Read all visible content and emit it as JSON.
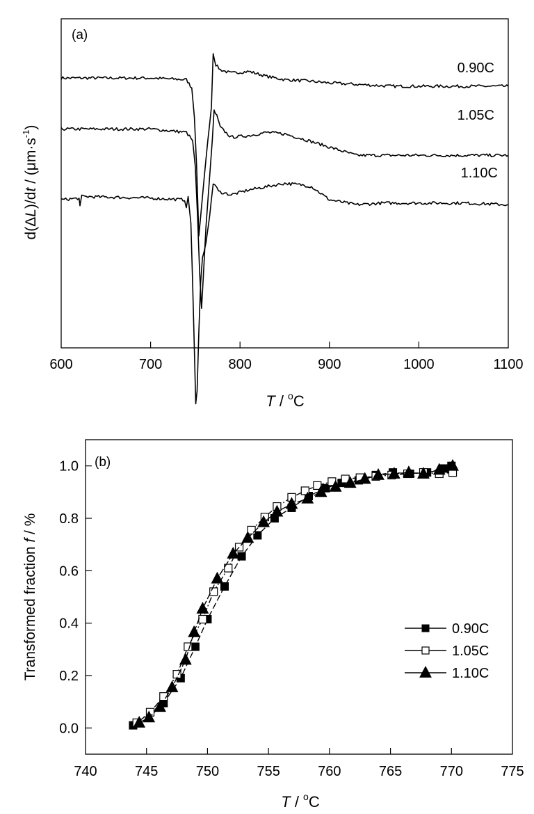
{
  "chart_data": [
    {
      "type": "line",
      "panel_label": "(a)",
      "xlabel_italic": "T",
      "xlabel_rest": " / ",
      "xlabel_sup": "o",
      "xlabel_unit": "C",
      "ylabel_prefix": "d(",
      "ylabel_delta": "Δ",
      "ylabel_L": "L",
      "ylabel_mid": ")/d",
      "ylabel_t": "t",
      "ylabel_rest": " / (μm·s",
      "ylabel_sup": "-1",
      "ylabel_close": ")",
      "xlim": [
        600,
        1100
      ],
      "x_ticks": [
        "600",
        "700",
        "800",
        "900",
        "1000",
        "1100"
      ],
      "y_ticks_shown": false,
      "ylim": [
        0,
        100
      ],
      "series": [
        {
          "name": "0.90C",
          "baseline": 81.5,
          "points": [
            [
              600,
              82
            ],
            [
              700,
              82
            ],
            [
              740,
              81.5
            ],
            [
              746,
              79
            ],
            [
              749,
              70
            ],
            [
              751.5,
              55
            ],
            [
              754,
              34
            ],
            [
              756,
              40
            ],
            [
              760,
              52
            ],
            [
              764,
              63
            ],
            [
              768,
              73
            ],
            [
              770,
              89.5
            ],
            [
              773,
              86
            ],
            [
              778,
              84.5
            ],
            [
              790,
              83.5
            ],
            [
              810,
              84
            ],
            [
              830,
              82.5
            ],
            [
              850,
              81.5
            ],
            [
              880,
              81
            ],
            [
              900,
              80.5
            ],
            [
              935,
              80
            ],
            [
              970,
              79.5
            ],
            [
              1000,
              79.5
            ],
            [
              1050,
              79.5
            ],
            [
              1100,
              79.5
            ]
          ]
        },
        {
          "name": "1.05C",
          "baseline": 66.5,
          "points": [
            [
              600,
              66.5
            ],
            [
              700,
              66.5
            ],
            [
              740,
              65.5
            ],
            [
              747,
              63
            ],
            [
              750,
              55
            ],
            [
              752.5,
              40
            ],
            [
              755,
              22
            ],
            [
              757,
              12
            ],
            [
              759,
              22
            ],
            [
              762,
              37
            ],
            [
              766,
              52
            ],
            [
              769,
              63
            ],
            [
              771,
              72
            ],
            [
              774,
              70.5
            ],
            [
              778,
              67
            ],
            [
              790,
              64
            ],
            [
              810,
              64.5
            ],
            [
              830,
              65.5
            ],
            [
              850,
              65
            ],
            [
              870,
              63.5
            ],
            [
              900,
              61
            ],
            [
              930,
              58.5
            ],
            [
              960,
              58.5
            ],
            [
              1000,
              58.5
            ],
            [
              1050,
              58.5
            ],
            [
              1100,
              58.5
            ]
          ]
        },
        {
          "name": "1.10C",
          "baseline": 45,
          "points": [
            [
              600,
              45
            ],
            [
              620,
              45.5
            ],
            [
              621,
              43
            ],
            [
              623,
              46
            ],
            [
              700,
              45.5
            ],
            [
              738,
              45
            ],
            [
              740,
              43
            ],
            [
              742,
              46
            ],
            [
              745,
              38
            ],
            [
              747,
              20
            ],
            [
              749,
              -1
            ],
            [
              750.5,
              -17
            ],
            [
              752,
              -13
            ],
            [
              754,
              5
            ],
            [
              756,
              20
            ],
            [
              758,
              27
            ],
            [
              762,
              32
            ],
            [
              766,
              40
            ],
            [
              770,
              50
            ],
            [
              772,
              49.5
            ],
            [
              776,
              47.5
            ],
            [
              790,
              46.5
            ],
            [
              810,
              48
            ],
            [
              830,
              49
            ],
            [
              850,
              50
            ],
            [
              870,
              49.5
            ],
            [
              880,
              49
            ],
            [
              900,
              45
            ],
            [
              930,
              43.5
            ],
            [
              960,
              44
            ],
            [
              1000,
              44
            ],
            [
              1050,
              44
            ],
            [
              1100,
              43.5
            ]
          ]
        }
      ]
    },
    {
      "type": "line",
      "panel_label": "(b)",
      "xlabel_italic": "T",
      "xlabel_rest": " / ",
      "xlabel_sup": "o",
      "xlabel_unit": "C",
      "ylabel_text": "Transformed fraction ",
      "ylabel_italic": "f",
      "ylabel_rest": " / %",
      "xlim": [
        740,
        775
      ],
      "ylim": [
        -0.1,
        1.1
      ],
      "x_ticks": [
        "740",
        "745",
        "750",
        "755",
        "760",
        "765",
        "770",
        "775"
      ],
      "y_ticks": [
        "0.0",
        "0.2",
        "0.4",
        "0.6",
        "0.8",
        "1.0"
      ],
      "legend_position": "right-middle",
      "series": [
        {
          "name": "0.90C",
          "marker": "filled-square",
          "points": [
            [
              743.9,
              0.01
            ],
            [
              746.4,
              0.095
            ],
            [
              747.8,
              0.19
            ],
            [
              749.0,
              0.31
            ],
            [
              750.0,
              0.415
            ],
            [
              751.4,
              0.54
            ],
            [
              752.8,
              0.655
            ],
            [
              754.1,
              0.735
            ],
            [
              755.5,
              0.8
            ],
            [
              756.9,
              0.84
            ],
            [
              758.3,
              0.885
            ],
            [
              759.7,
              0.915
            ],
            [
              761.0,
              0.935
            ],
            [
              762.4,
              0.945
            ],
            [
              763.8,
              0.965
            ],
            [
              765.2,
              0.975
            ],
            [
              766.6,
              0.97
            ],
            [
              768.0,
              0.975
            ],
            [
              769.4,
              0.99
            ],
            [
              770.0,
              1.0
            ]
          ]
        },
        {
          "name": "1.05C",
          "marker": "open-square",
          "points": [
            [
              744.2,
              0.02
            ],
            [
              745.3,
              0.06
            ],
            [
              746.4,
              0.12
            ],
            [
              747.5,
              0.205
            ],
            [
              748.4,
              0.31
            ],
            [
              749.6,
              0.415
            ],
            [
              750.5,
              0.52
            ],
            [
              751.7,
              0.61
            ],
            [
              752.6,
              0.69
            ],
            [
              753.6,
              0.755
            ],
            [
              754.7,
              0.805
            ],
            [
              755.7,
              0.845
            ],
            [
              756.9,
              0.88
            ],
            [
              758.0,
              0.905
            ],
            [
              759.0,
              0.925
            ],
            [
              760.2,
              0.94
            ],
            [
              761.3,
              0.95
            ],
            [
              762.5,
              0.955
            ],
            [
              763.8,
              0.96
            ],
            [
              765.1,
              0.965
            ],
            [
              766.4,
              0.97
            ],
            [
              767.7,
              0.975
            ],
            [
              769.0,
              0.97
            ],
            [
              770.1,
              0.975
            ]
          ]
        },
        {
          "name": "1.10C",
          "marker": "filled-triangle",
          "points": [
            [
              744.4,
              0.02
            ],
            [
              745.2,
              0.04
            ],
            [
              746.1,
              0.08
            ],
            [
              747.1,
              0.155
            ],
            [
              748.2,
              0.26
            ],
            [
              748.9,
              0.365
            ],
            [
              749.6,
              0.455
            ],
            [
              750.8,
              0.57
            ],
            [
              752.1,
              0.665
            ],
            [
              753.3,
              0.725
            ],
            [
              754.6,
              0.785
            ],
            [
              755.7,
              0.825
            ],
            [
              756.9,
              0.855
            ],
            [
              758.2,
              0.875
            ],
            [
              759.3,
              0.9
            ],
            [
              760.5,
              0.92
            ],
            [
              761.7,
              0.935
            ],
            [
              762.9,
              0.95
            ],
            [
              764.0,
              0.965
            ],
            [
              765.3,
              0.97
            ],
            [
              766.5,
              0.975
            ],
            [
              767.7,
              0.97
            ],
            [
              769.0,
              0.985
            ],
            [
              770.1,
              1.0
            ]
          ]
        }
      ]
    }
  ]
}
